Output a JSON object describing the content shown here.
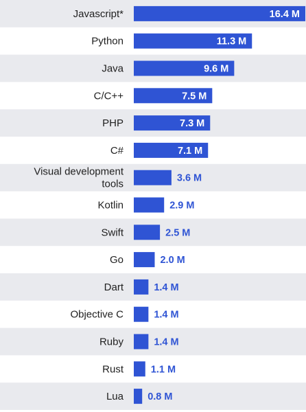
{
  "chart_data": {
    "type": "bar",
    "orientation": "horizontal",
    "title": "",
    "xlabel": "",
    "ylabel": "",
    "categories": [
      "Javascript*",
      "Python",
      "Java",
      "C/C++",
      "PHP",
      "C#",
      "Visual development tools",
      "Kotlin",
      "Swift",
      "Go",
      "Dart",
      "Objective C",
      "Ruby",
      "Rust",
      "Lua"
    ],
    "values": [
      16.4,
      11.3,
      9.6,
      7.5,
      7.3,
      7.1,
      3.6,
      2.9,
      2.5,
      2.0,
      1.4,
      1.4,
      1.4,
      1.1,
      0.8
    ],
    "value_labels": [
      "16.4 M",
      "11.3 M",
      "9.6 M",
      "7.5 M",
      "7.3 M",
      "7.1 M",
      "3.6 M",
      "2.9 M",
      "2.5 M",
      "2.0 M",
      "1.4 M",
      "1.4 M",
      "1.4 M",
      "1.1 M",
      "0.8 M"
    ],
    "unit": "M",
    "xlim": [
      0,
      16.4
    ],
    "grid": false,
    "legend": "none",
    "colors": {
      "bar": "#2f54d4",
      "label_inside": "#ffffff",
      "label_outside": "#2f54d4",
      "row_band": "#e9eaee"
    }
  }
}
